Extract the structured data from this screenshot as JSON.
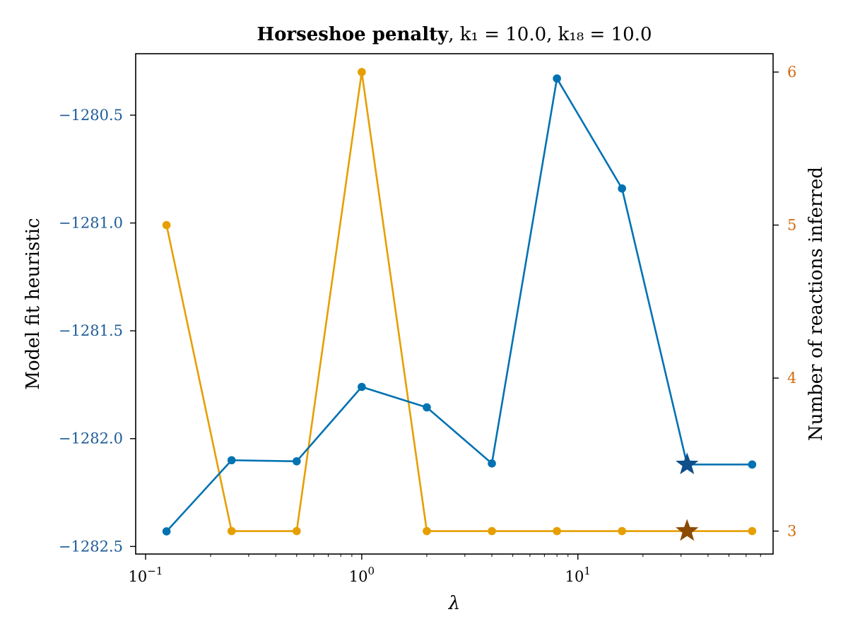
{
  "chart_data": {
    "type": "line",
    "title": {
      "bold": "Horseshoe penalty",
      "rest": ", k₁ = 10.0, k₁₈ = 10.0"
    },
    "xlabel": "λ",
    "xscale": "log",
    "xlim": [
      0.09,
      80
    ],
    "xticks": [
      {
        "value": 0.1,
        "base": "10",
        "exp": "−1"
      },
      {
        "value": 1,
        "base": "10",
        "exp": "0"
      },
      {
        "value": 10,
        "base": "10",
        "exp": "1"
      }
    ],
    "x": [
      0.125,
      0.25,
      0.5,
      1,
      2,
      4,
      8,
      16,
      32,
      64
    ],
    "left_axis": {
      "label": "Model fit heuristic",
      "ylim": [
        -1282.535,
        -1280.215
      ],
      "ticks": [
        -1280.5,
        -1281.0,
        -1281.5,
        -1282.0,
        -1282.5
      ],
      "tick_labels": [
        "−1280.5",
        "−1281.0",
        "−1281.5",
        "−1282.0",
        "−1282.5"
      ],
      "color": "#1f5c99"
    },
    "right_axis": {
      "label": "Number of reactions inferred",
      "ylim": [
        2.85,
        6.12
      ],
      "ticks": [
        3,
        4,
        5,
        6
      ],
      "tick_labels": [
        "3",
        "4",
        "5",
        "6"
      ],
      "color": "#d46a0f"
    },
    "series": [
      {
        "axis": "left",
        "color": "#0072b2",
        "star_color": "#0e4f8c",
        "values": [
          -1282.43,
          -1282.1,
          -1282.105,
          -1281.76,
          -1281.855,
          -1282.115,
          -1280.33,
          -1280.84,
          -1282.12,
          -1282.12
        ],
        "best_index": 8
      },
      {
        "axis": "right",
        "color": "#e69f00",
        "star_color": "#8b4a00",
        "values": [
          5,
          3,
          3,
          6,
          3,
          3,
          3,
          3,
          3,
          3
        ],
        "best_index": 8
      }
    ],
    "grid": false,
    "legend": "none"
  }
}
